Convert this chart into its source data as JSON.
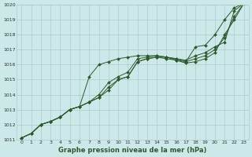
{
  "bg_color": "#cce8e8",
  "grid_color": "#aacccc",
  "line_color": "#2d5a2d",
  "marker_color": "#2d5a2d",
  "title": "Graphe pression niveau de la mer (hPa)",
  "xlim": [
    -0.5,
    23.5
  ],
  "ylim": [
    1011,
    1020
  ],
  "xticks": [
    0,
    1,
    2,
    3,
    4,
    5,
    6,
    7,
    8,
    9,
    10,
    11,
    12,
    13,
    14,
    15,
    16,
    17,
    18,
    19,
    20,
    21,
    22,
    23
  ],
  "yticks": [
    1011,
    1012,
    1013,
    1014,
    1015,
    1016,
    1017,
    1018,
    1019,
    1020
  ],
  "series": [
    [
      1011.1,
      1011.4,
      1012.0,
      1012.2,
      1012.5,
      1013.0,
      1013.2,
      1015.2,
      1016.0,
      1016.2,
      1016.4,
      1016.5,
      1016.6,
      1016.6,
      1016.6,
      1016.5,
      1016.3,
      1016.2,
      1017.2,
      1017.3,
      1018.0,
      1019.0,
      1019.8,
      1020.1
    ],
    [
      1011.1,
      1011.4,
      1012.0,
      1012.2,
      1012.5,
      1013.0,
      1013.2,
      1013.5,
      1014.0,
      1014.8,
      1015.2,
      1015.5,
      1016.4,
      1016.5,
      1016.6,
      1016.5,
      1016.4,
      1016.3,
      1016.6,
      1016.8,
      1017.2,
      1017.5,
      1019.6,
      1020.1
    ],
    [
      1011.1,
      1011.4,
      1012.0,
      1012.2,
      1012.5,
      1013.0,
      1013.2,
      1013.5,
      1013.8,
      1014.5,
      1015.0,
      1015.2,
      1016.2,
      1016.4,
      1016.5,
      1016.5,
      1016.4,
      1016.2,
      1016.4,
      1016.6,
      1017.0,
      1017.8,
      1019.2,
      1020.1
    ],
    [
      1011.1,
      1011.4,
      1012.0,
      1012.2,
      1012.5,
      1013.0,
      1013.2,
      1013.5,
      1013.8,
      1014.3,
      1015.0,
      1015.2,
      1016.2,
      1016.4,
      1016.5,
      1016.4,
      1016.3,
      1016.1,
      1016.2,
      1016.4,
      1016.8,
      1018.0,
      1019.0,
      1020.1
    ]
  ]
}
